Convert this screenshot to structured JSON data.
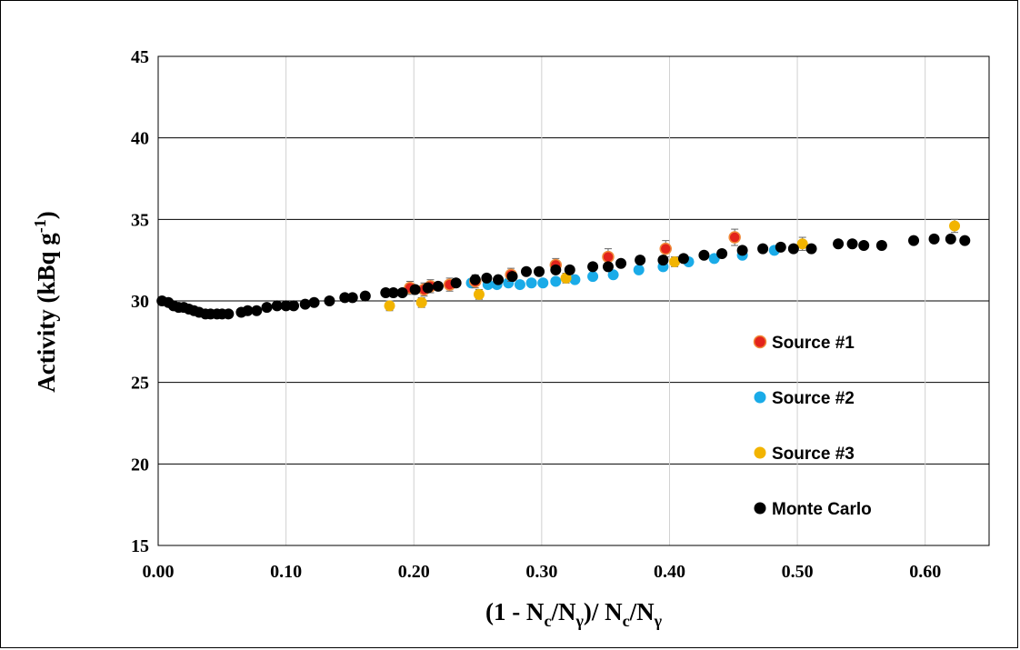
{
  "chart_data": {
    "type": "scatter",
    "title": "",
    "xlabel": {
      "main": "(1 - N",
      "sub1": "c",
      "mid1": "/N",
      "sub2": "γ",
      "mid2": ")/ N",
      "sub3": "c",
      "mid3": "/N",
      "sub4": "γ"
    },
    "ylabel": {
      "main": "Activity  (kBq g",
      "sup": "-1",
      "end": ")"
    },
    "xlim": [
      0.0,
      0.65
    ],
    "ylim": [
      15,
      45
    ],
    "xticks": [
      "0.00",
      "0.10",
      "0.20",
      "0.30",
      "0.40",
      "0.50",
      "0.60"
    ],
    "xtick_values": [
      0.0,
      0.1,
      0.2,
      0.3,
      0.4,
      0.5,
      0.6
    ],
    "yticks": [
      "15",
      "20",
      "25",
      "30",
      "35",
      "40",
      "45"
    ],
    "ytick_values": [
      15,
      20,
      25,
      30,
      35,
      40,
      45
    ],
    "grid": "both",
    "legend_position": "right-middle",
    "series": [
      {
        "name": "Source #1",
        "color": "#e3231b",
        "error_bars": true,
        "points": [
          [
            0.197,
            30.8
          ],
          [
            0.208,
            30.7
          ],
          [
            0.213,
            30.9
          ],
          [
            0.228,
            31.0
          ],
          [
            0.248,
            31.2
          ],
          [
            0.276,
            31.6
          ],
          [
            0.311,
            32.2
          ],
          [
            0.352,
            32.7
          ],
          [
            0.397,
            33.2
          ],
          [
            0.451,
            33.9
          ]
        ],
        "errors": [
          0.4,
          0.4,
          0.4,
          0.4,
          0.4,
          0.4,
          0.4,
          0.5,
          0.5,
          0.5
        ]
      },
      {
        "name": "Source #2",
        "color": "#1aabe8",
        "error_bars": false,
        "points": [
          [
            0.245,
            31.1
          ],
          [
            0.258,
            31.0
          ],
          [
            0.265,
            31.0
          ],
          [
            0.274,
            31.1
          ],
          [
            0.283,
            31.0
          ],
          [
            0.292,
            31.1
          ],
          [
            0.301,
            31.1
          ],
          [
            0.311,
            31.2
          ],
          [
            0.326,
            31.3
          ],
          [
            0.34,
            31.5
          ],
          [
            0.356,
            31.6
          ],
          [
            0.376,
            31.9
          ],
          [
            0.395,
            32.1
          ],
          [
            0.415,
            32.4
          ],
          [
            0.435,
            32.6
          ],
          [
            0.457,
            32.8
          ],
          [
            0.482,
            33.1
          ]
        ],
        "errors": []
      },
      {
        "name": "Source #3",
        "color": "#f2b400",
        "error_bars": true,
        "points": [
          [
            0.181,
            29.7
          ],
          [
            0.206,
            29.9
          ],
          [
            0.251,
            30.4
          ],
          [
            0.319,
            31.4
          ],
          [
            0.404,
            32.4
          ],
          [
            0.504,
            33.5
          ],
          [
            0.623,
            34.6
          ]
        ],
        "errors": [
          0.3,
          0.3,
          0.3,
          0.3,
          0.3,
          0.4,
          0.4
        ]
      },
      {
        "name": "Monte Carlo",
        "color": "#000000",
        "error_bars": false,
        "points": [
          [
            0.003,
            30.0
          ],
          [
            0.008,
            29.9
          ],
          [
            0.012,
            29.7
          ],
          [
            0.016,
            29.6
          ],
          [
            0.02,
            29.6
          ],
          [
            0.024,
            29.5
          ],
          [
            0.028,
            29.4
          ],
          [
            0.032,
            29.3
          ],
          [
            0.037,
            29.2
          ],
          [
            0.041,
            29.2
          ],
          [
            0.046,
            29.2
          ],
          [
            0.05,
            29.2
          ],
          [
            0.055,
            29.2
          ],
          [
            0.065,
            29.3
          ],
          [
            0.07,
            29.4
          ],
          [
            0.077,
            29.4
          ],
          [
            0.085,
            29.6
          ],
          [
            0.093,
            29.7
          ],
          [
            0.1,
            29.7
          ],
          [
            0.106,
            29.7
          ],
          [
            0.115,
            29.8
          ],
          [
            0.122,
            29.9
          ],
          [
            0.134,
            30.0
          ],
          [
            0.146,
            30.2
          ],
          [
            0.152,
            30.2
          ],
          [
            0.162,
            30.3
          ],
          [
            0.178,
            30.5
          ],
          [
            0.184,
            30.5
          ],
          [
            0.191,
            30.5
          ],
          [
            0.201,
            30.7
          ],
          [
            0.211,
            30.8
          ],
          [
            0.219,
            30.9
          ],
          [
            0.233,
            31.1
          ],
          [
            0.248,
            31.3
          ],
          [
            0.257,
            31.4
          ],
          [
            0.266,
            31.3
          ],
          [
            0.277,
            31.5
          ],
          [
            0.288,
            31.8
          ],
          [
            0.298,
            31.8
          ],
          [
            0.311,
            31.9
          ],
          [
            0.322,
            31.9
          ],
          [
            0.34,
            32.1
          ],
          [
            0.352,
            32.1
          ],
          [
            0.362,
            32.3
          ],
          [
            0.377,
            32.5
          ],
          [
            0.395,
            32.5
          ],
          [
            0.411,
            32.6
          ],
          [
            0.427,
            32.8
          ],
          [
            0.441,
            32.9
          ],
          [
            0.457,
            33.1
          ],
          [
            0.473,
            33.2
          ],
          [
            0.487,
            33.3
          ],
          [
            0.497,
            33.2
          ],
          [
            0.511,
            33.2
          ],
          [
            0.532,
            33.5
          ],
          [
            0.543,
            33.5
          ],
          [
            0.552,
            33.4
          ],
          [
            0.566,
            33.4
          ],
          [
            0.591,
            33.7
          ],
          [
            0.607,
            33.8
          ],
          [
            0.62,
            33.8
          ],
          [
            0.631,
            33.7
          ]
        ],
        "errors": []
      }
    ]
  }
}
